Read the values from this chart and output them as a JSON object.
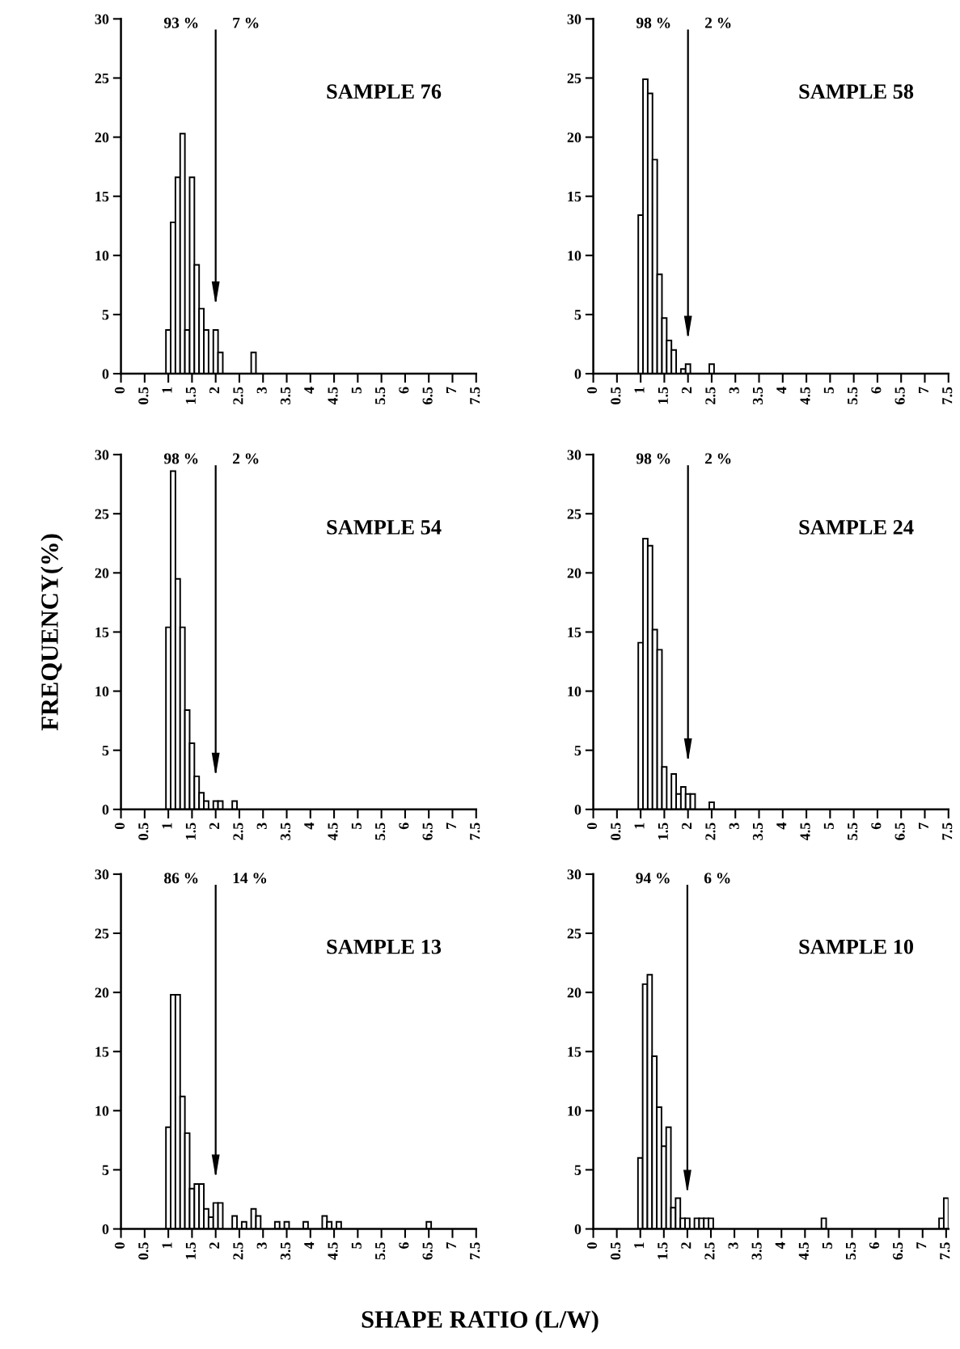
{
  "chart_data": [
    {
      "type": "histogram",
      "title": "SAMPLE 76",
      "annotations": [
        "93 %",
        "7 %"
      ],
      "ref_lines": [
        {
          "axis": "x",
          "value": 2
        }
      ],
      "color": "#ffffff",
      "bins": [
        0.95,
        1.05,
        1.15,
        1.25,
        1.35,
        1.45,
        1.55,
        1.65,
        1.75,
        1.85,
        1.95,
        2.05,
        2.15,
        2.25,
        2.35,
        2.45,
        2.55,
        2.65,
        2.75,
        2.85
      ],
      "values": [
        3.7,
        12.8,
        16.6,
        20.3,
        3.7,
        16.6,
        9.2,
        5.5,
        3.7,
        0,
        3.7,
        1.8,
        0,
        0,
        0,
        0,
        0,
        0,
        1.8
      ],
      "xlim": [
        0,
        7.5
      ],
      "xticks": [
        0,
        0.5,
        1,
        1.5,
        2,
        2.5,
        3,
        3.5,
        4,
        4.5,
        5,
        5.5,
        6,
        6.5,
        7,
        7.5
      ],
      "ylim": [
        0,
        30
      ],
      "yticks": [
        0,
        5,
        10,
        15,
        20,
        25,
        30
      ],
      "grid": false
    },
    {
      "type": "histogram",
      "title": "SAMPLE 58",
      "annotations": [
        "98 %",
        "2 %"
      ],
      "ref_lines": [
        {
          "axis": "x",
          "value": 2
        }
      ],
      "color": "#ffffff",
      "bins": [
        0.95,
        1.05,
        1.15,
        1.25,
        1.35,
        1.45,
        1.55,
        1.65,
        1.75,
        1.85,
        1.95,
        2.05,
        2.15,
        2.25,
        2.35,
        2.45,
        2.55
      ],
      "values": [
        13.4,
        24.9,
        23.7,
        18.1,
        8.4,
        4.7,
        2.8,
        2.0,
        0,
        0.4,
        0.8,
        0,
        0,
        0,
        0,
        0.8
      ],
      "xlim": [
        0,
        7.5
      ],
      "xticks": [
        0,
        0.5,
        1,
        1.5,
        2,
        2.5,
        3,
        3.5,
        4,
        4.5,
        5,
        5.5,
        6,
        6.5,
        7,
        7.5
      ],
      "ylim": [
        0,
        30
      ],
      "yticks": [
        0,
        5,
        10,
        15,
        20,
        25,
        30
      ],
      "grid": false
    },
    {
      "type": "histogram",
      "title": "SAMPLE 54",
      "ylabel": "FREQUENCY(%)",
      "annotations": [
        "98 %",
        "2 %"
      ],
      "ref_lines": [
        {
          "axis": "x",
          "value": 2
        }
      ],
      "color": "#ffffff",
      "bins": [
        0.95,
        1.05,
        1.15,
        1.25,
        1.35,
        1.45,
        1.55,
        1.65,
        1.75,
        1.85,
        1.95,
        2.05,
        2.15,
        2.25,
        2.35,
        2.45
      ],
      "values": [
        15.4,
        28.6,
        19.5,
        15.4,
        8.4,
        5.6,
        2.8,
        1.4,
        0.7,
        0,
        0.7,
        0.7,
        0,
        0,
        0.7
      ],
      "xlim": [
        0,
        7.5
      ],
      "xticks": [
        0,
        0.5,
        1,
        1.5,
        2,
        2.5,
        3,
        3.5,
        4,
        4.5,
        5,
        5.5,
        6,
        6.5,
        7,
        7.5
      ],
      "ylim": [
        0,
        30
      ],
      "yticks": [
        0,
        5,
        10,
        15,
        20,
        25,
        30
      ],
      "grid": false
    },
    {
      "type": "histogram",
      "title": "SAMPLE 24",
      "annotations": [
        "98 %",
        "2 %"
      ],
      "ref_lines": [
        {
          "axis": "x",
          "value": 2
        }
      ],
      "color": "#ffffff",
      "bins": [
        0.95,
        1.05,
        1.15,
        1.25,
        1.35,
        1.45,
        1.55,
        1.65,
        1.75,
        1.85,
        1.95,
        2.05,
        2.15,
        2.25,
        2.35,
        2.45,
        2.55
      ],
      "values": [
        14.1,
        22.9,
        22.3,
        15.2,
        13.5,
        3.6,
        0,
        3.0,
        1.3,
        1.9,
        1.3,
        1.3,
        0,
        0,
        0,
        0.6
      ],
      "xlim": [
        0,
        7.5
      ],
      "xticks": [
        0,
        0.5,
        1,
        1.5,
        2,
        2.5,
        3,
        3.5,
        4,
        4.5,
        5,
        5.5,
        6,
        6.5,
        7,
        7.5
      ],
      "ylim": [
        0,
        30
      ],
      "yticks": [
        0,
        5,
        10,
        15,
        20,
        25,
        30
      ],
      "grid": false
    },
    {
      "type": "histogram",
      "title": "SAMPLE 13",
      "xlabel": "SHAPE RATIO (L/W)",
      "annotations": [
        "86 %",
        "14 %"
      ],
      "ref_lines": [
        {
          "axis": "x",
          "value": 2
        }
      ],
      "color": "#ffffff",
      "bins": [
        0.95,
        1.05,
        1.15,
        1.25,
        1.35,
        1.45,
        1.55,
        1.65,
        1.75,
        1.85,
        1.95,
        2.05,
        2.15,
        2.25,
        2.35,
        2.45,
        2.55,
        2.65,
        2.75,
        2.85,
        2.95,
        3.05,
        3.15,
        3.25,
        3.35,
        3.45,
        3.55,
        3.65,
        3.75,
        3.85,
        3.95,
        4.05,
        4.15,
        4.25,
        4.35,
        4.45,
        4.55,
        4.65,
        4.75,
        4.85,
        4.95,
        5.05,
        5.15,
        5.25,
        5.35,
        5.45,
        5.55,
        5.65,
        5.75,
        5.85,
        5.95,
        6.05,
        6.15,
        6.25,
        6.35,
        6.45,
        6.55
      ],
      "values": [
        8.6,
        19.8,
        19.8,
        11.2,
        8.1,
        3.4,
        3.8,
        3.8,
        1.7,
        1.0,
        2.2,
        2.2,
        0,
        0,
        1.1,
        0,
        0.6,
        0,
        1.7,
        1.1,
        0,
        0,
        0,
        0.6,
        0,
        0.6,
        0,
        0,
        0,
        0.6,
        0,
        0,
        0,
        1.1,
        0.6,
        0,
        0.6,
        0,
        0,
        0,
        0,
        0,
        0,
        0,
        0,
        0,
        0,
        0,
        0,
        0,
        0,
        0,
        0,
        0,
        0,
        0.6
      ],
      "xlim": [
        0,
        7.5
      ],
      "xticks": [
        0,
        0.5,
        1,
        1.5,
        2,
        2.5,
        3,
        3.5,
        4,
        4.5,
        5,
        5.5,
        6,
        6.5,
        7,
        7.5
      ],
      "ylim": [
        0,
        30
      ],
      "yticks": [
        0,
        5,
        10,
        15,
        20,
        25,
        30
      ],
      "grid": false
    },
    {
      "type": "histogram",
      "title": "SAMPLE 10",
      "annotations": [
        "94 %",
        "6 %"
      ],
      "ref_lines": [
        {
          "axis": "x",
          "value": 2
        }
      ],
      "color": "#ffffff",
      "bins": [
        0.95,
        1.05,
        1.15,
        1.25,
        1.35,
        1.45,
        1.55,
        1.65,
        1.75,
        1.85,
        1.95,
        2.05,
        2.15,
        2.25,
        2.35,
        2.45,
        2.55,
        2.65,
        2.75,
        2.85,
        2.95,
        3.05,
        3.15,
        3.25,
        3.35,
        3.45,
        3.55,
        3.65,
        3.75,
        3.85,
        3.95,
        4.05,
        4.15,
        4.25,
        4.35,
        4.45,
        4.55,
        4.65,
        4.75,
        4.85,
        4.95,
        5.05,
        5.15,
        5.25,
        5.35,
        5.45,
        5.55,
        5.65,
        5.75,
        5.85,
        5.95,
        6.05,
        6.15,
        6.25,
        6.35,
        6.45,
        6.55,
        6.65,
        6.75,
        6.85,
        6.95,
        7.05,
        7.15,
        7.25,
        7.35,
        7.45,
        7.55
      ],
      "values": [
        6.0,
        20.7,
        21.5,
        14.6,
        10.3,
        7.0,
        8.6,
        1.8,
        2.6,
        0.9,
        0.9,
        0,
        0.9,
        0.9,
        0.9,
        0.9,
        0,
        0,
        0,
        0,
        0,
        0,
        0,
        0,
        0,
        0,
        0,
        0,
        0,
        0,
        0,
        0,
        0,
        0,
        0,
        0,
        0,
        0,
        0,
        0.9,
        0,
        0,
        0,
        0,
        0,
        0,
        0,
        0,
        0,
        0,
        0,
        0,
        0,
        0,
        0,
        0,
        0,
        0,
        0,
        0,
        0,
        0,
        0,
        0,
        0.9,
        2.6
      ],
      "xlim": [
        0,
        7.55
      ],
      "xticks": [
        0,
        0.5,
        1,
        1.5,
        2,
        2.5,
        3,
        3.5,
        4,
        4.5,
        5,
        5.5,
        6,
        6.5,
        7,
        7.5
      ],
      "ylim": [
        0,
        30
      ],
      "yticks": [
        0,
        5,
        10,
        15,
        20,
        25,
        30
      ],
      "grid": false
    }
  ]
}
